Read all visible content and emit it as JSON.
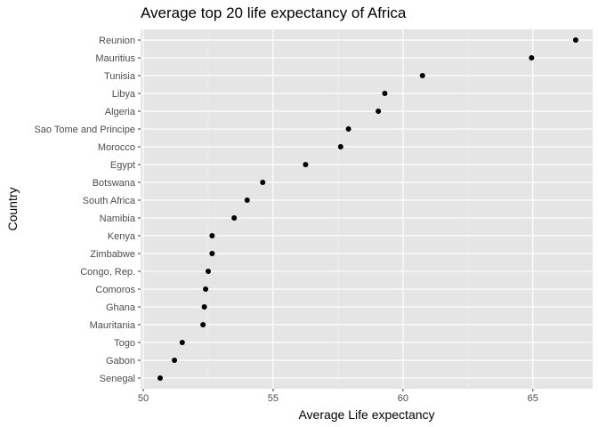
{
  "chart_data": {
    "type": "scatter",
    "title": "Average top 20 life expectancy of Africa",
    "xlabel": "Average Life expectancy",
    "ylabel": "Country",
    "xlim": [
      50,
      67.2
    ],
    "xticks": [
      50,
      55,
      60,
      65
    ],
    "grid": true,
    "categories": [
      "Reunion",
      "Mauritius",
      "Tunisia",
      "Libya",
      "Algeria",
      "Sao Tome and Principe",
      "Morocco",
      "Egypt",
      "Botswana",
      "South Africa",
      "Namibia",
      "Kenya",
      "Zimbabwe",
      "Congo, Rep.",
      "Comoros",
      "Ghana",
      "Mauritania",
      "Togo",
      "Gabon",
      "Senegal"
    ],
    "values": [
      66.65,
      64.95,
      60.75,
      59.3,
      59.05,
      57.9,
      57.6,
      56.25,
      54.6,
      54.0,
      53.5,
      52.65,
      52.65,
      52.5,
      52.4,
      52.35,
      52.3,
      51.5,
      51.2,
      50.65
    ]
  },
  "colors": {
    "panel": "#e5e5e5",
    "grid_major": "#ffffff",
    "point": "#000000",
    "tick_text": "#4d4d4d"
  }
}
